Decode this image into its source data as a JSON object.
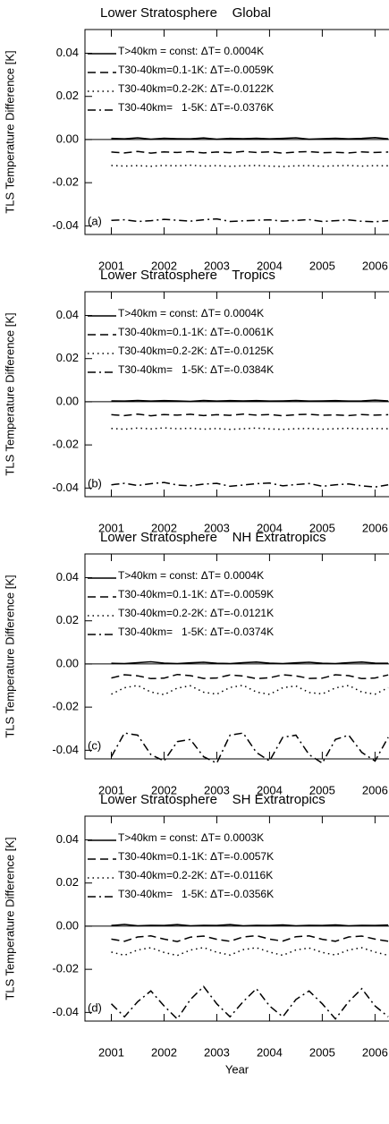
{
  "chart_data": [
    {
      "type": "line",
      "title": "Lower Stratosphere    Global",
      "ylabel": "TLS Temperature Difference [K]",
      "annotation": "(a)",
      "x": [
        2001.0,
        2001.25,
        2001.5,
        2001.75,
        2002.0,
        2002.25,
        2002.5,
        2002.75,
        2003.0,
        2003.25,
        2003.5,
        2003.75,
        2004.0,
        2004.25,
        2004.5,
        2004.75,
        2005.0,
        2005.25,
        2005.5,
        2005.75,
        2006.0,
        2006.25
      ],
      "xlim": [
        2000.5,
        2006.35
      ],
      "xticks": [
        2001,
        2002,
        2003,
        2004,
        2005,
        2006
      ],
      "ylim": [
        -0.044,
        0.051
      ],
      "yticks": [
        0.04,
        0.02,
        {
          "value": 0,
          "label": "0.00"
        },
        -0.02,
        -0.04
      ],
      "zero_line": true,
      "series": [
        {
          "name": "T>40km = const: ΔT= 0.0004K",
          "color": "#000000",
          "dash": "solid",
          "values": [
            0.0005,
            0.0003,
            0.0008,
            0.0002,
            0.0006,
            0.0004,
            0.0003,
            0.0007,
            0.0002,
            0.0005,
            0.0004,
            0.0006,
            0.0003,
            0.0005,
            0.0008,
            0.0002,
            0.0004,
            0.0006,
            0.0003,
            0.0005,
            0.0009,
            0.0003
          ]
        },
        {
          "name": "T30-40km=0.1-1K: ΔT=-0.0059K",
          "color": "#000000",
          "dash": "dashed",
          "values": [
            -0.0058,
            -0.0062,
            -0.0055,
            -0.0063,
            -0.0057,
            -0.006,
            -0.0056,
            -0.0062,
            -0.0058,
            -0.0061,
            -0.0055,
            -0.006,
            -0.0057,
            -0.0063,
            -0.0058,
            -0.0056,
            -0.0061,
            -0.0059,
            -0.0062,
            -0.0057,
            -0.006,
            -0.0058
          ]
        },
        {
          "name": "T30-40km=0.2-2K: ΔT=-0.0122K",
          "color": "#000000",
          "dash": "dotted",
          "values": [
            -0.012,
            -0.0123,
            -0.0121,
            -0.0124,
            -0.012,
            -0.0122,
            -0.0119,
            -0.0123,
            -0.0121,
            -0.0124,
            -0.0122,
            -0.012,
            -0.0123,
            -0.0125,
            -0.0122,
            -0.0121,
            -0.0124,
            -0.0122,
            -0.012,
            -0.0123,
            -0.0121,
            -0.0122
          ]
        },
        {
          "name": "T30-40km=   1-5K: ΔT=-0.0376K",
          "color": "#000000",
          "dash": "dashdot",
          "values": [
            -0.0375,
            -0.0372,
            -0.038,
            -0.0376,
            -0.037,
            -0.0374,
            -0.0378,
            -0.0372,
            -0.0368,
            -0.038,
            -0.0377,
            -0.0374,
            -0.0372,
            -0.0378,
            -0.0375,
            -0.0371,
            -0.038,
            -0.0376,
            -0.0373,
            -0.0379,
            -0.0381,
            -0.0376
          ]
        }
      ]
    },
    {
      "type": "line",
      "title": "Lower Stratosphere    Tropics",
      "ylabel": "TLS Temperature Difference [K]",
      "annotation": "(b)",
      "x": [
        2001.0,
        2001.25,
        2001.5,
        2001.75,
        2002.0,
        2002.25,
        2002.5,
        2002.75,
        2003.0,
        2003.25,
        2003.5,
        2003.75,
        2004.0,
        2004.25,
        2004.5,
        2004.75,
        2005.0,
        2005.25,
        2005.5,
        2005.75,
        2006.0,
        2006.25
      ],
      "xlim": [
        2000.5,
        2006.35
      ],
      "xticks": [
        2001,
        2002,
        2003,
        2004,
        2005,
        2006
      ],
      "ylim": [
        -0.044,
        0.051
      ],
      "yticks": [
        0.04,
        0.02,
        {
          "value": 0,
          "label": "0.00"
        },
        -0.02,
        -0.04
      ],
      "zero_line": true,
      "series": [
        {
          "name": "T>40km = const: ΔT= 0.0004K",
          "color": "#000000",
          "dash": "solid",
          "values": [
            0.0004,
            0.0003,
            0.0006,
            0.0003,
            0.0005,
            0.0004,
            0.0002,
            0.0006,
            0.0003,
            0.0005,
            0.0004,
            0.0005,
            0.0003,
            0.0004,
            0.0006,
            0.0003,
            0.0004,
            0.0005,
            0.0003,
            0.0004,
            0.0007,
            0.0004
          ]
        },
        {
          "name": "T30-40km=0.1-1K: ΔT=-0.0061K",
          "color": "#000000",
          "dash": "dashed",
          "values": [
            -0.006,
            -0.0064,
            -0.0057,
            -0.0065,
            -0.0059,
            -0.0062,
            -0.0058,
            -0.0064,
            -0.006,
            -0.0063,
            -0.0057,
            -0.0062,
            -0.0059,
            -0.0065,
            -0.006,
            -0.0058,
            -0.0063,
            -0.0061,
            -0.0064,
            -0.0059,
            -0.0062,
            -0.006
          ]
        },
        {
          "name": "T30-40km=0.2-2K: ΔT=-0.0125K",
          "color": "#000000",
          "dash": "dotted",
          "values": [
            -0.0124,
            -0.0127,
            -0.0122,
            -0.0126,
            -0.0121,
            -0.0125,
            -0.0123,
            -0.0127,
            -0.0124,
            -0.0128,
            -0.0125,
            -0.0122,
            -0.0126,
            -0.0128,
            -0.0125,
            -0.0124,
            -0.0127,
            -0.0125,
            -0.0123,
            -0.0126,
            -0.0124,
            -0.0125
          ]
        },
        {
          "name": "T30-40km=   1-5K: ΔT=-0.0384K",
          "color": "#000000",
          "dash": "dashdot",
          "values": [
            -0.0385,
            -0.0378,
            -0.0388,
            -0.038,
            -0.0374,
            -0.0386,
            -0.039,
            -0.0382,
            -0.0378,
            -0.0392,
            -0.0386,
            -0.038,
            -0.0377,
            -0.039,
            -0.0384,
            -0.0379,
            -0.0392,
            -0.0385,
            -0.0381,
            -0.039,
            -0.0395,
            -0.0385
          ]
        }
      ]
    },
    {
      "type": "line",
      "title": "Lower Stratosphere    NH Extratropics",
      "ylabel": "TLS Temperature Difference [K]",
      "annotation": "(c)",
      "x": [
        2001.0,
        2001.25,
        2001.5,
        2001.75,
        2002.0,
        2002.25,
        2002.5,
        2002.75,
        2003.0,
        2003.25,
        2003.5,
        2003.75,
        2004.0,
        2004.25,
        2004.5,
        2004.75,
        2005.0,
        2005.25,
        2005.5,
        2005.75,
        2006.0,
        2006.25
      ],
      "xlim": [
        2000.5,
        2006.35
      ],
      "xticks": [
        2001,
        2002,
        2003,
        2004,
        2005,
        2006
      ],
      "ylim": [
        -0.044,
        0.051
      ],
      "yticks": [
        0.04,
        0.02,
        {
          "value": 0,
          "label": "0.00"
        },
        -0.02,
        -0.04
      ],
      "zero_line": true,
      "series": [
        {
          "name": "T>40km = const: ΔT= 0.0004K",
          "color": "#000000",
          "dash": "solid",
          "values": [
            0.0003,
            0.0002,
            0.0006,
            0.001,
            0.0004,
            0.0002,
            0.0005,
            0.0008,
            0.0003,
            0.0002,
            0.0006,
            0.0009,
            0.0004,
            0.0002,
            0.0005,
            0.0008,
            0.0003,
            0.0002,
            0.0006,
            0.0009,
            0.0004,
            0.0003
          ]
        },
        {
          "name": "T30-40km=0.1-1K: ΔT=-0.0059K",
          "color": "#000000",
          "dash": "dashed",
          "values": [
            -0.0065,
            -0.005,
            -0.0055,
            -0.0068,
            -0.0066,
            -0.0049,
            -0.0054,
            -0.0067,
            -0.0065,
            -0.0051,
            -0.0056,
            -0.0068,
            -0.0064,
            -0.005,
            -0.0055,
            -0.0067,
            -0.0066,
            -0.005,
            -0.0054,
            -0.0068,
            -0.0065,
            -0.0051
          ]
        },
        {
          "name": "T30-40km=0.2-2K: ΔT=-0.0121K",
          "color": "#000000",
          "dash": "dotted",
          "values": [
            -0.014,
            -0.011,
            -0.01,
            -0.013,
            -0.0142,
            -0.0112,
            -0.0101,
            -0.0131,
            -0.014,
            -0.0109,
            -0.0099,
            -0.013,
            -0.0141,
            -0.011,
            -0.0102,
            -0.0132,
            -0.0139,
            -0.0111,
            -0.01,
            -0.013,
            -0.014,
            -0.011
          ]
        },
        {
          "name": "T30-40km=   1-5K: ΔT=-0.0374K",
          "color": "#000000",
          "dash": "dashdot",
          "values": [
            -0.043,
            -0.032,
            -0.033,
            -0.042,
            -0.045,
            -0.036,
            -0.035,
            -0.043,
            -0.046,
            -0.033,
            -0.032,
            -0.041,
            -0.045,
            -0.034,
            -0.033,
            -0.042,
            -0.046,
            -0.035,
            -0.033,
            -0.041,
            -0.045,
            -0.034
          ]
        }
      ]
    },
    {
      "type": "line",
      "title": "Lower Stratosphere    SH Extratropics",
      "ylabel": "TLS Temperature Difference [K]",
      "annotation": "(d)",
      "xlabel": "Year",
      "x": [
        2001.0,
        2001.25,
        2001.5,
        2001.75,
        2002.0,
        2002.25,
        2002.5,
        2002.75,
        2003.0,
        2003.25,
        2003.5,
        2003.75,
        2004.0,
        2004.25,
        2004.5,
        2004.75,
        2005.0,
        2005.25,
        2005.5,
        2005.75,
        2006.0,
        2006.25
      ],
      "xlim": [
        2000.5,
        2006.35
      ],
      "xticks": [
        2001,
        2002,
        2003,
        2004,
        2005,
        2006
      ],
      "ylim": [
        -0.044,
        0.051
      ],
      "yticks": [
        0.04,
        0.02,
        {
          "value": 0,
          "label": "0.00"
        },
        -0.02,
        -0.04
      ],
      "zero_line": true,
      "series": [
        {
          "name": "T>40km = const: ΔT= 0.0003K",
          "color": "#000000",
          "dash": "solid",
          "values": [
            0.0003,
            0.0008,
            0.0002,
            0.0004,
            0.0003,
            0.0007,
            0.0002,
            0.0004,
            0.0003,
            0.0007,
            0.0002,
            0.0004,
            0.0003,
            0.0006,
            0.0002,
            0.0004,
            0.0003,
            0.0006,
            0.0002,
            0.0004,
            0.0003,
            0.0005
          ]
        },
        {
          "name": "T30-40km=0.1-1K: ΔT=-0.0057K",
          "color": "#000000",
          "dash": "dashed",
          "values": [
            -0.006,
            -0.007,
            -0.005,
            -0.0045,
            -0.006,
            -0.0071,
            -0.0051,
            -0.0046,
            -0.0061,
            -0.007,
            -0.005,
            -0.0044,
            -0.006,
            -0.0069,
            -0.0049,
            -0.0045,
            -0.0061,
            -0.007,
            -0.005,
            -0.0046,
            -0.006,
            -0.007
          ]
        },
        {
          "name": "T30-40km=0.2-2K: ΔT=-0.0116K",
          "color": "#000000",
          "dash": "dotted",
          "values": [
            -0.012,
            -0.0135,
            -0.011,
            -0.01,
            -0.0122,
            -0.0136,
            -0.0111,
            -0.0099,
            -0.0121,
            -0.0134,
            -0.0109,
            -0.01,
            -0.012,
            -0.0135,
            -0.011,
            -0.0101,
            -0.0122,
            -0.0134,
            -0.011,
            -0.01,
            -0.012,
            -0.0135
          ]
        },
        {
          "name": "T30-40km=   1-5K: ΔT=-0.0356K",
          "color": "#000000",
          "dash": "dashdot",
          "values": [
            -0.036,
            -0.042,
            -0.035,
            -0.03,
            -0.037,
            -0.043,
            -0.034,
            -0.028,
            -0.036,
            -0.042,
            -0.035,
            -0.029,
            -0.037,
            -0.042,
            -0.034,
            -0.03,
            -0.036,
            -0.043,
            -0.035,
            -0.029,
            -0.037,
            -0.042
          ]
        }
      ]
    }
  ]
}
